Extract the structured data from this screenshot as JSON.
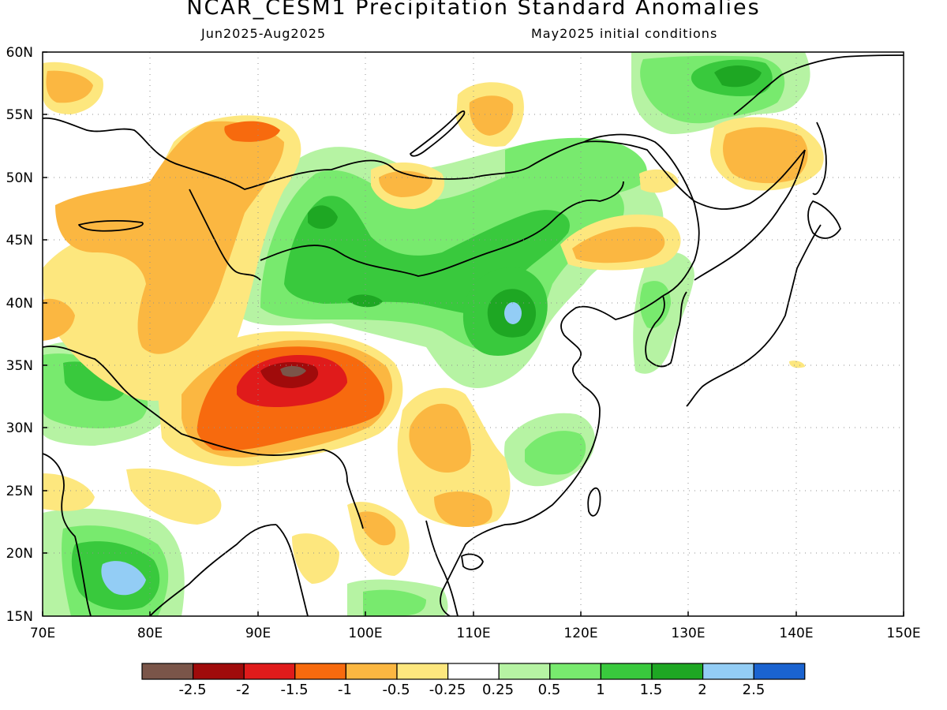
{
  "title": "NCAR_CESM1 Precipitation Standard Anomalies",
  "subtitle_left": "Jun2025-Aug2025",
  "subtitle_right": "May2025 initial conditions",
  "map": {
    "projection": "lat-lon",
    "lon_range": [
      70,
      150
    ],
    "lat_range": [
      15,
      60
    ],
    "lat_labels": [
      "60N",
      "55N",
      "50N",
      "45N",
      "40N",
      "35N",
      "30N",
      "25N",
      "20N",
      "15N"
    ],
    "lon_labels": [
      "70E",
      "80E",
      "90E",
      "100E",
      "110E",
      "120E",
      "130E",
      "140E",
      "150E"
    ],
    "grid": "dotted every 10° lon / 5° lat"
  },
  "colorbar": {
    "labels": [
      "-2.5",
      "-2",
      "-1.5",
      "-1",
      "-0.5",
      "-0.25",
      "0.25",
      "0.5",
      "1",
      "1.5",
      "2",
      "2.5"
    ],
    "colors": [
      "#7a5549",
      "#a00b0b",
      "#e01b1b",
      "#f76a0e",
      "#fbb741",
      "#fde77e",
      "#ffffff",
      "#b6f3a3",
      "#78ea6e",
      "#39c93d",
      "#1ea723",
      "#93cdf5",
      "#1a63d0"
    ]
  },
  "anomaly_regions": [
    {
      "name": "central-tibet-dry",
      "level": "-2.5"
    },
    {
      "name": "tibet-dry",
      "level": "-2"
    },
    {
      "name": "west-china-dry",
      "level": "-1"
    },
    {
      "name": "inner-mongolia-wet",
      "level": "1.5"
    },
    {
      "name": "north-china-wet",
      "level": "2"
    },
    {
      "name": "south-india-wet",
      "level": "2"
    },
    {
      "name": "far-east-russia-wet",
      "level": "1.5"
    },
    {
      "name": "manchuria-dry",
      "level": "-1"
    },
    {
      "name": "okhotsk-dry",
      "level": "-1"
    }
  ]
}
